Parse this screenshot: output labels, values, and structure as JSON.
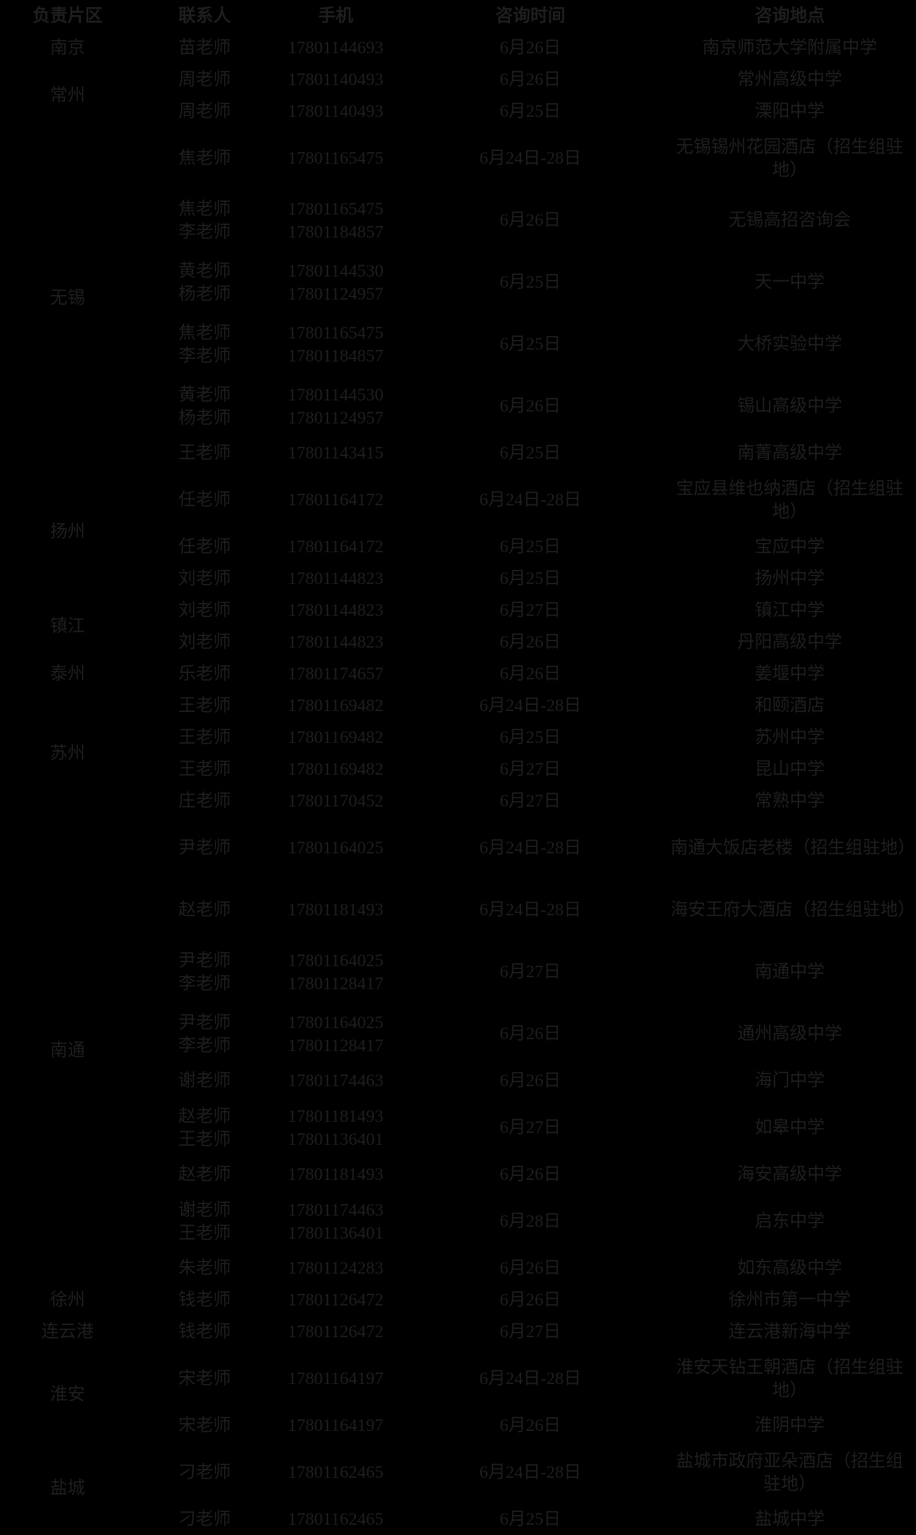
{
  "colors": {
    "background": "#000000",
    "text": "#1e1e1e"
  },
  "table": {
    "columns": [
      "负责片区",
      "联系人",
      "手机",
      "咨询时间",
      "咨询地点"
    ],
    "regions": [
      {
        "name": "南京",
        "rows": [
          {
            "contacts": [
              {
                "name": "苗老师",
                "phone": "17801144693"
              }
            ],
            "time": "6月26日",
            "location": "南京师范大学附属中学"
          }
        ]
      },
      {
        "name": "常州",
        "rows": [
          {
            "contacts": [
              {
                "name": "周老师",
                "phone": "17801140493"
              }
            ],
            "time": "6月26日",
            "location": "常州高级中学"
          },
          {
            "contacts": [
              {
                "name": "周老师",
                "phone": "17801140493"
              }
            ],
            "time": "6月25日",
            "location": "溧阳中学"
          }
        ]
      },
      {
        "name": "无锡",
        "rows": [
          {
            "contacts": [
              {
                "name": "焦老师",
                "phone": "17801165475"
              }
            ],
            "time": "6月24日-28日",
            "location": "无锡锡州花园酒店（招生组驻地）"
          },
          {
            "contacts": [
              {
                "name": "焦老师",
                "phone": "17801165475"
              },
              {
                "name": "李老师",
                "phone": "17801184857"
              }
            ],
            "time": "6月26日",
            "location": "无锡高招咨询会"
          },
          {
            "contacts": [
              {
                "name": "黄老师",
                "phone": "17801144530"
              },
              {
                "name": "杨老师",
                "phone": "17801124957"
              }
            ],
            "time": "6月25日",
            "location": "天一中学"
          },
          {
            "contacts": [
              {
                "name": "焦老师",
                "phone": "17801165475"
              },
              {
                "name": "李老师",
                "phone": "17801184857"
              }
            ],
            "time": "6月25日",
            "location": "大桥实验中学"
          },
          {
            "contacts": [
              {
                "name": "黄老师",
                "phone": "17801144530"
              },
              {
                "name": "杨老师",
                "phone": "17801124957"
              }
            ],
            "time": "6月26日",
            "location": "锡山高级中学"
          },
          {
            "contacts": [
              {
                "name": "王老师",
                "phone": "17801143415"
              }
            ],
            "time": "6月25日",
            "location": "南菁高级中学"
          }
        ]
      },
      {
        "name": "扬州",
        "rows": [
          {
            "contacts": [
              {
                "name": "任老师",
                "phone": "17801164172"
              }
            ],
            "time": "6月24日-28日",
            "location": "宝应县维也纳酒店（招生组驻地）"
          },
          {
            "contacts": [
              {
                "name": "任老师",
                "phone": "17801164172"
              }
            ],
            "time": "6月25日",
            "location": "宝应中学"
          },
          {
            "contacts": [
              {
                "name": "刘老师",
                "phone": "17801144823"
              }
            ],
            "time": "6月25日",
            "location": "扬州中学"
          }
        ]
      },
      {
        "name": "镇江",
        "rows": [
          {
            "contacts": [
              {
                "name": "刘老师",
                "phone": "17801144823"
              }
            ],
            "time": "6月27日",
            "location": "镇江中学"
          },
          {
            "contacts": [
              {
                "name": "刘老师",
                "phone": "17801144823"
              }
            ],
            "time": "6月26日",
            "location": "丹阳高级中学"
          }
        ]
      },
      {
        "name": "泰州",
        "rows": [
          {
            "contacts": [
              {
                "name": "乐老师",
                "phone": "17801174657"
              }
            ],
            "time": "6月26日",
            "location": "姜堰中学"
          }
        ]
      },
      {
        "name": "苏州",
        "rows": [
          {
            "contacts": [
              {
                "name": "王老师",
                "phone": "17801169482"
              }
            ],
            "time": "6月24日-28日",
            "location": "和颐酒店"
          },
          {
            "contacts": [
              {
                "name": "王老师",
                "phone": "17801169482"
              }
            ],
            "time": "6月25日",
            "location": "苏州中学"
          },
          {
            "contacts": [
              {
                "name": "王老师",
                "phone": "17801169482"
              }
            ],
            "time": "6月27日",
            "location": "昆山中学"
          },
          {
            "contacts": [
              {
                "name": "庄老师",
                "phone": "17801170452"
              }
            ],
            "time": "6月27日",
            "location": "常熟中学"
          }
        ]
      },
      {
        "name": "南通",
        "rows": [
          {
            "contacts": [
              {
                "name": "尹老师",
                "phone": "17801164025"
              }
            ],
            "time": "6月24日-28日",
            "location": "南通大饭店老楼（招生组驻地）"
          },
          {
            "contacts": [
              {
                "name": "赵老师",
                "phone": "17801181493"
              }
            ],
            "time": "6月24日-28日",
            "location": "海安王府大酒店（招生组驻地）"
          },
          {
            "contacts": [
              {
                "name": "尹老师",
                "phone": "17801164025"
              },
              {
                "name": "李老师",
                "phone": "17801128417"
              }
            ],
            "time": "6月27日",
            "location": "南通中学"
          },
          {
            "contacts": [
              {
                "name": "尹老师",
                "phone": "17801164025"
              },
              {
                "name": "李老师",
                "phone": "17801128417"
              }
            ],
            "time": "6月26日",
            "location": "通州高级中学"
          },
          {
            "contacts": [
              {
                "name": "谢老师",
                "phone": "17801174463"
              }
            ],
            "time": "6月26日",
            "location": "海门中学"
          },
          {
            "contacts": [
              {
                "name": "赵老师",
                "phone": "17801181493"
              },
              {
                "name": "王老师",
                "phone": "17801136401"
              }
            ],
            "time": "6月27日",
            "location": "如皋中学"
          },
          {
            "contacts": [
              {
                "name": "赵老师",
                "phone": "17801181493"
              }
            ],
            "time": "6月26日",
            "location": "海安高级中学"
          },
          {
            "contacts": [
              {
                "name": "谢老师",
                "phone": "17801174463"
              },
              {
                "name": "王老师",
                "phone": "17801136401"
              }
            ],
            "time": "6月28日",
            "location": "启东中学"
          },
          {
            "contacts": [
              {
                "name": "朱老师",
                "phone": "17801124283"
              }
            ],
            "time": "6月26日",
            "location": "如东高级中学"
          }
        ]
      },
      {
        "name": "徐州",
        "rows": [
          {
            "contacts": [
              {
                "name": "钱老师",
                "phone": "17801126472"
              }
            ],
            "time": "6月26日",
            "location": "徐州市第一中学"
          }
        ]
      },
      {
        "name": "连云港",
        "rows": [
          {
            "contacts": [
              {
                "name": "钱老师",
                "phone": "17801126472"
              }
            ],
            "time": "6月27日",
            "location": "连云港新海中学"
          }
        ]
      },
      {
        "name": "淮安",
        "rows": [
          {
            "contacts": [
              {
                "name": "宋老师",
                "phone": "17801164197"
              }
            ],
            "time": "6月24日-28日",
            "location": "淮安天钻王朝酒店（招生组驻地）"
          },
          {
            "contacts": [
              {
                "name": "宋老师",
                "phone": "17801164197"
              }
            ],
            "time": "6月26日",
            "location": "淮阴中学"
          }
        ]
      },
      {
        "name": "盐城",
        "rows": [
          {
            "contacts": [
              {
                "name": "刁老师",
                "phone": "17801162465"
              }
            ],
            "time": "6月24日-28日",
            "location": "盐城市政府亚朵酒店（招生组驻地）"
          },
          {
            "contacts": [
              {
                "name": "刁老师",
                "phone": "17801162465"
              }
            ],
            "time": "6月25日",
            "location": "盐城中学"
          }
        ]
      }
    ]
  }
}
